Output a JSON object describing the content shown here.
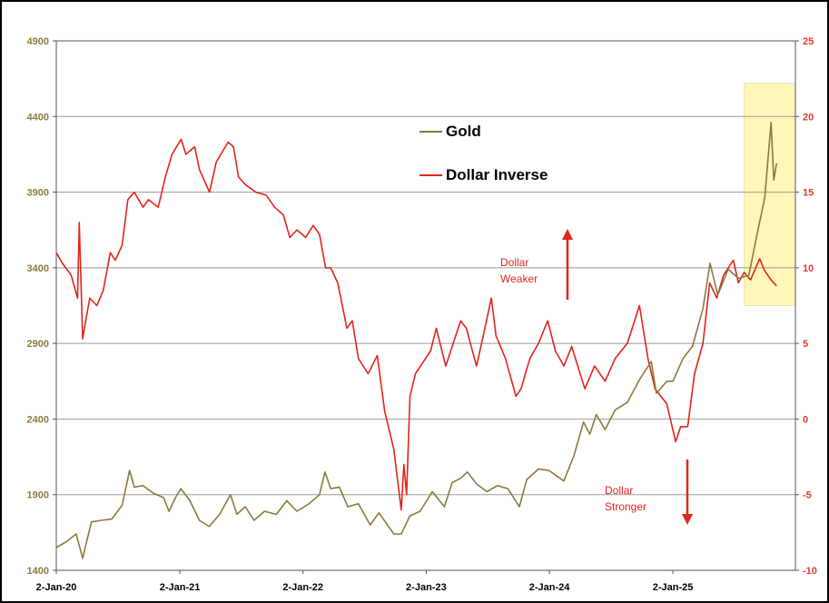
{
  "chart_data": {
    "type": "line",
    "x_ticks": [
      "2-Jan-20",
      "2-Jan-21",
      "2-Jan-22",
      "2-Jan-23",
      "2-Jan-24",
      "2-Jan-25"
    ],
    "x_range": [
      "2020-01-02",
      "2025-12-31"
    ],
    "y_left": {
      "min": 1400,
      "max": 4900,
      "ticks": [
        1400,
        1900,
        2400,
        2900,
        3400,
        3900,
        4400,
        4900
      ],
      "color": "#8c7a3c"
    },
    "y_right": {
      "min": -10,
      "max": 25,
      "ticks": [
        -10,
        -5,
        0,
        5,
        10,
        15,
        20,
        25
      ],
      "color": "#e03a2f"
    },
    "grid": true,
    "legend": {
      "position": "top-center",
      "entries": [
        "Gold",
        "Dollar Inverse"
      ]
    },
    "annotations": [
      {
        "text": [
          "Dollar",
          "Weaker"
        ],
        "arrow": "up"
      },
      {
        "text": [
          "Dollar",
          "Stronger"
        ],
        "arrow": "down"
      }
    ],
    "highlight": {
      "from": "2025-08-01",
      "to": "2025-12-31",
      "y_from": 7.5,
      "y_to": 22.2,
      "color": "#fff6b8"
    },
    "series": [
      {
        "name": "Gold",
        "axis": "left",
        "color": "#8c7a3c",
        "points": [
          [
            "2020-01-02",
            1550
          ],
          [
            "2020-02-01",
            1590
          ],
          [
            "2020-03-01",
            1640
          ],
          [
            "2020-03-20",
            1480
          ],
          [
            "2020-04-15",
            1720
          ],
          [
            "2020-05-15",
            1730
          ],
          [
            "2020-06-15",
            1740
          ],
          [
            "2020-07-15",
            1830
          ],
          [
            "2020-08-06",
            2060
          ],
          [
            "2020-08-20",
            1950
          ],
          [
            "2020-09-15",
            1960
          ],
          [
            "2020-10-15",
            1910
          ],
          [
            "2020-11-15",
            1880
          ],
          [
            "2020-12-01",
            1790
          ],
          [
            "2020-12-20",
            1880
          ],
          [
            "2021-01-05",
            1940
          ],
          [
            "2021-02-01",
            1860
          ],
          [
            "2021-03-01",
            1730
          ],
          [
            "2021-03-30",
            1690
          ],
          [
            "2021-04-30",
            1770
          ],
          [
            "2021-06-01",
            1900
          ],
          [
            "2021-06-20",
            1770
          ],
          [
            "2021-07-15",
            1820
          ],
          [
            "2021-08-10",
            1730
          ],
          [
            "2021-09-10",
            1790
          ],
          [
            "2021-10-15",
            1770
          ],
          [
            "2021-11-15",
            1860
          ],
          [
            "2021-12-15",
            1790
          ],
          [
            "2022-01-20",
            1840
          ],
          [
            "2022-02-20",
            1900
          ],
          [
            "2022-03-08",
            2050
          ],
          [
            "2022-03-25",
            1940
          ],
          [
            "2022-04-20",
            1950
          ],
          [
            "2022-05-15",
            1820
          ],
          [
            "2022-06-15",
            1840
          ],
          [
            "2022-07-20",
            1700
          ],
          [
            "2022-08-15",
            1780
          ],
          [
            "2022-09-28",
            1640
          ],
          [
            "2022-10-20",
            1640
          ],
          [
            "2022-11-15",
            1760
          ],
          [
            "2022-12-15",
            1790
          ],
          [
            "2023-01-20",
            1920
          ],
          [
            "2023-02-25",
            1820
          ],
          [
            "2023-03-20",
            1980
          ],
          [
            "2023-04-15",
            2010
          ],
          [
            "2023-05-04",
            2050
          ],
          [
            "2023-06-01",
            1970
          ],
          [
            "2023-07-01",
            1920
          ],
          [
            "2023-08-01",
            1960
          ],
          [
            "2023-09-01",
            1940
          ],
          [
            "2023-10-05",
            1820
          ],
          [
            "2023-10-27",
            2000
          ],
          [
            "2023-12-01",
            2070
          ],
          [
            "2024-01-01",
            2060
          ],
          [
            "2024-02-14",
            1990
          ],
          [
            "2024-03-15",
            2160
          ],
          [
            "2024-04-12",
            2380
          ],
          [
            "2024-05-01",
            2300
          ],
          [
            "2024-05-20",
            2430
          ],
          [
            "2024-06-15",
            2330
          ],
          [
            "2024-07-15",
            2460
          ],
          [
            "2024-08-20",
            2510
          ],
          [
            "2024-09-25",
            2660
          ],
          [
            "2024-10-30",
            2780
          ],
          [
            "2024-11-14",
            2570
          ],
          [
            "2024-12-15",
            2650
          ],
          [
            "2025-01-02",
            2650
          ],
          [
            "2025-02-01",
            2800
          ],
          [
            "2025-03-01",
            2880
          ],
          [
            "2025-04-01",
            3130
          ],
          [
            "2025-04-22",
            3430
          ],
          [
            "2025-05-15",
            3220
          ],
          [
            "2025-06-15",
            3390
          ],
          [
            "2025-07-15",
            3330
          ],
          [
            "2025-08-15",
            3350
          ],
          [
            "2025-09-10",
            3640
          ],
          [
            "2025-10-01",
            3860
          ],
          [
            "2025-10-20",
            4360
          ],
          [
            "2025-10-28",
            3980
          ],
          [
            "2025-11-05",
            4090
          ]
        ]
      },
      {
        "name": "Dollar Inverse",
        "axis": "right",
        "color": "#e0251c",
        "points": [
          [
            "2020-01-02",
            11.0
          ],
          [
            "2020-01-20",
            10.3
          ],
          [
            "2020-02-15",
            9.5
          ],
          [
            "2020-03-05",
            8.0
          ],
          [
            "2020-03-10",
            13.0
          ],
          [
            "2020-03-20",
            5.3
          ],
          [
            "2020-04-10",
            8.0
          ],
          [
            "2020-05-01",
            7.5
          ],
          [
            "2020-05-20",
            8.5
          ],
          [
            "2020-06-10",
            11.0
          ],
          [
            "2020-06-25",
            10.5
          ],
          [
            "2020-07-15",
            11.5
          ],
          [
            "2020-08-01",
            14.5
          ],
          [
            "2020-08-20",
            15.0
          ],
          [
            "2020-09-15",
            14.0
          ],
          [
            "2020-10-01",
            14.5
          ],
          [
            "2020-10-30",
            14.0
          ],
          [
            "2020-11-20",
            16.0
          ],
          [
            "2020-12-10",
            17.5
          ],
          [
            "2021-01-06",
            18.5
          ],
          [
            "2021-01-20",
            17.5
          ],
          [
            "2021-02-15",
            18.0
          ],
          [
            "2021-03-01",
            16.5
          ],
          [
            "2021-03-31",
            15.0
          ],
          [
            "2021-04-20",
            17.0
          ],
          [
            "2021-05-25",
            18.3
          ],
          [
            "2021-06-10",
            18.0
          ],
          [
            "2021-06-25",
            16.0
          ],
          [
            "2021-07-15",
            15.5
          ],
          [
            "2021-08-15",
            15.0
          ],
          [
            "2021-09-15",
            14.8
          ],
          [
            "2021-10-10",
            14.0
          ],
          [
            "2021-11-05",
            13.5
          ],
          [
            "2021-11-24",
            12.0
          ],
          [
            "2021-12-15",
            12.5
          ],
          [
            "2022-01-10",
            12.0
          ],
          [
            "2022-02-01",
            12.8
          ],
          [
            "2022-02-20",
            12.2
          ],
          [
            "2022-03-10",
            10.0
          ],
          [
            "2022-03-25",
            10.0
          ],
          [
            "2022-04-15",
            9.0
          ],
          [
            "2022-05-12",
            6.0
          ],
          [
            "2022-05-28",
            6.5
          ],
          [
            "2022-06-15",
            4.0
          ],
          [
            "2022-07-14",
            3.0
          ],
          [
            "2022-08-10",
            4.2
          ],
          [
            "2022-09-01",
            0.5
          ],
          [
            "2022-09-28",
            -2.0
          ],
          [
            "2022-10-20",
            -6.0
          ],
          [
            "2022-10-28",
            -3.0
          ],
          [
            "2022-11-05",
            -5.0
          ],
          [
            "2022-11-15",
            1.5
          ],
          [
            "2022-12-01",
            3.0
          ],
          [
            "2023-01-15",
            4.5
          ],
          [
            "2023-02-01",
            6.0
          ],
          [
            "2023-03-01",
            3.5
          ],
          [
            "2023-04-14",
            6.5
          ],
          [
            "2023-05-01",
            6.0
          ],
          [
            "2023-05-31",
            3.5
          ],
          [
            "2023-06-20",
            5.5
          ],
          [
            "2023-07-14",
            8.0
          ],
          [
            "2023-07-28",
            5.5
          ],
          [
            "2023-08-25",
            4.0
          ],
          [
            "2023-09-25",
            1.5
          ],
          [
            "2023-10-10",
            2.0
          ],
          [
            "2023-11-05",
            4.0
          ],
          [
            "2023-12-01",
            5.0
          ],
          [
            "2023-12-28",
            6.5
          ],
          [
            "2024-01-20",
            4.5
          ],
          [
            "2024-02-14",
            3.5
          ],
          [
            "2024-03-08",
            4.8
          ],
          [
            "2024-04-16",
            2.0
          ],
          [
            "2024-05-15",
            3.5
          ],
          [
            "2024-06-15",
            2.5
          ],
          [
            "2024-07-15",
            4.0
          ],
          [
            "2024-08-20",
            5.0
          ],
          [
            "2024-09-25",
            7.5
          ],
          [
            "2024-10-20",
            4.0
          ],
          [
            "2024-11-10",
            2.0
          ],
          [
            "2024-12-15",
            1.0
          ],
          [
            "2025-01-10",
            -1.5
          ],
          [
            "2025-01-25",
            -0.5
          ],
          [
            "2025-02-15",
            -0.5
          ],
          [
            "2025-03-07",
            3.0
          ],
          [
            "2025-04-01",
            5.0
          ],
          [
            "2025-04-21",
            9.0
          ],
          [
            "2025-05-12",
            8.0
          ],
          [
            "2025-06-01",
            9.5
          ],
          [
            "2025-06-30",
            10.5
          ],
          [
            "2025-07-15",
            9.0
          ],
          [
            "2025-08-01",
            9.7
          ],
          [
            "2025-08-20",
            9.2
          ],
          [
            "2025-09-16",
            10.6
          ],
          [
            "2025-10-01",
            9.8
          ],
          [
            "2025-10-20",
            9.2
          ],
          [
            "2025-11-05",
            8.8
          ]
        ]
      }
    ]
  }
}
